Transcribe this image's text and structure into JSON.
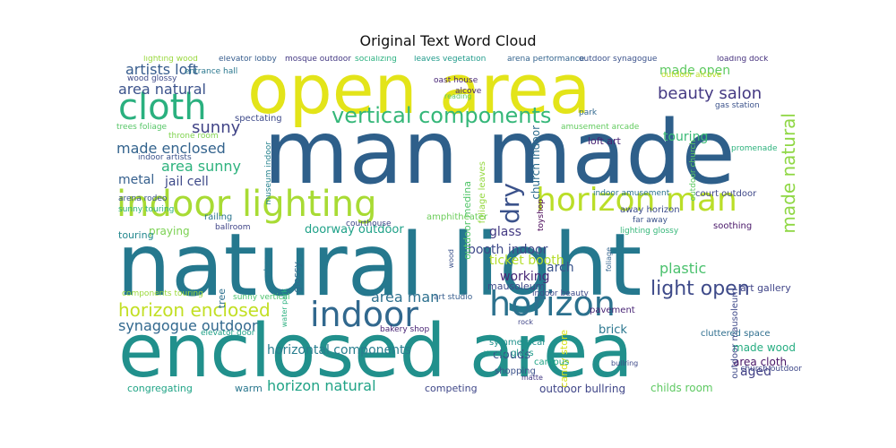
{
  "chart_data": {
    "type": "wordcloud",
    "title": "Original Text Word Cloud",
    "background": "#ffffff",
    "colormap": "viridis",
    "words": [
      {
        "text": "man made",
        "size": 98,
        "color": "#2e5f8a"
      },
      {
        "text": "natural light",
        "size": 96,
        "color": "#25788e"
      },
      {
        "text": "enclosed area",
        "size": 82,
        "color": "#21908c"
      },
      {
        "text": "open area",
        "size": 76,
        "color": "#e3e419"
      },
      {
        "text": "indoor lighting",
        "size": 40,
        "color": "#a8db34"
      },
      {
        "text": "cloth",
        "size": 40,
        "color": "#2ab07f"
      },
      {
        "text": "indoor",
        "size": 38,
        "color": "#31688e"
      },
      {
        "text": "horizon",
        "size": 38,
        "color": "#2c718e"
      },
      {
        "text": "horizon man",
        "size": 36,
        "color": "#bade28"
      },
      {
        "text": "vertical components",
        "size": 24,
        "color": "#35b779"
      },
      {
        "text": "dry",
        "size": 28,
        "color": "#3b528b"
      },
      {
        "text": "made natural",
        "size": 20,
        "color": "#8fd744"
      },
      {
        "text": "light open",
        "size": 22,
        "color": "#3e4a89"
      },
      {
        "text": "beauty salon",
        "size": 18,
        "color": "#443983"
      },
      {
        "text": "horizon enclosed",
        "size": 20,
        "color": "#c2df23"
      },
      {
        "text": "sunny",
        "size": 18,
        "color": "#414487"
      },
      {
        "text": "area natural",
        "size": 16,
        "color": "#3b528b"
      },
      {
        "text": "artists loft",
        "size": 16,
        "color": "#365c8d"
      },
      {
        "text": "made enclosed",
        "size": 16,
        "color": "#33638d"
      },
      {
        "text": "area sunny",
        "size": 16,
        "color": "#2db27d"
      },
      {
        "text": "metal",
        "size": 14,
        "color": "#355f8d"
      },
      {
        "text": "jail cell",
        "size": 14,
        "color": "#3e4a89"
      },
      {
        "text": "area man",
        "size": 16,
        "color": "#2d708e"
      },
      {
        "text": "synagogue outdoor",
        "size": 16,
        "color": "#31688e"
      },
      {
        "text": "horizontal components",
        "size": 14,
        "color": "#287d8e"
      },
      {
        "text": "horizon natural",
        "size": 16,
        "color": "#20a386"
      },
      {
        "text": "plastic",
        "size": 16,
        "color": "#4ac16d"
      },
      {
        "text": "made open",
        "size": 14,
        "color": "#5ec962"
      },
      {
        "text": "touring",
        "size": 14,
        "color": "#3aba76"
      },
      {
        "text": "glass",
        "size": 14,
        "color": "#443a83"
      },
      {
        "text": "booth indoor",
        "size": 14,
        "color": "#3e4989"
      },
      {
        "text": "ticket booth",
        "size": 14,
        "color": "#b5de2b"
      },
      {
        "text": "working",
        "size": 14,
        "color": "#482878"
      },
      {
        "text": "doorway outdoor",
        "size": 13,
        "color": "#1fa188"
      },
      {
        "text": "praying",
        "size": 12,
        "color": "#7ad151"
      },
      {
        "text": "clouds",
        "size": 13,
        "color": "#3c4f8a"
      },
      {
        "text": "brick",
        "size": 13,
        "color": "#2a768e"
      },
      {
        "text": "aged",
        "size": 14,
        "color": "#424086"
      },
      {
        "text": "area cloth",
        "size": 12,
        "color": "#471365"
      },
      {
        "text": "made wood",
        "size": 12,
        "color": "#26ad81"
      },
      {
        "text": "outdoor bullring",
        "size": 12,
        "color": "#404688"
      },
      {
        "text": "childs room",
        "size": 12,
        "color": "#5ec962"
      },
      {
        "text": "congregating",
        "size": 11,
        "color": "#20a486"
      },
      {
        "text": "warm",
        "size": 11,
        "color": "#2a778e"
      },
      {
        "text": "competing",
        "size": 11,
        "color": "#3f4788"
      },
      {
        "text": "candy store",
        "size": 11,
        "color": "#d8e219"
      },
      {
        "text": "touring",
        "size": 11,
        "color": "#23888e"
      },
      {
        "text": "art gallery",
        "size": 11,
        "color": "#404588"
      },
      {
        "text": "arch",
        "size": 14,
        "color": "#3a548c"
      },
      {
        "text": "glossy",
        "size": 11,
        "color": "#2f6b8e"
      },
      {
        "text": "tree",
        "size": 11,
        "color": "#2d708e"
      },
      {
        "text": "mausoleum",
        "size": 11,
        "color": "#3e4a89"
      },
      {
        "text": "church indoor",
        "size": 12,
        "color": "#2e6d8e"
      },
      {
        "text": "outdoor medina",
        "size": 11,
        "color": "#52c569"
      },
      {
        "text": "amphitheater",
        "size": 10,
        "color": "#6ccd5a"
      },
      {
        "text": "foliage leaves",
        "size": 10,
        "color": "#95d840"
      },
      {
        "text": "loft art",
        "size": 11,
        "color": "#482374"
      },
      {
        "text": "court outdoor",
        "size": 10,
        "color": "#3f4889"
      },
      {
        "text": "away horizon",
        "size": 10,
        "color": "#3d4d8a"
      },
      {
        "text": "soothing",
        "size": 10,
        "color": "#481668"
      },
      {
        "text": "pavement",
        "size": 10,
        "color": "#482475"
      },
      {
        "text": "symmetrical",
        "size": 10,
        "color": "#20928c"
      },
      {
        "text": "wood glass",
        "size": 10,
        "color": "#1f998a"
      },
      {
        "text": "shopping",
        "size": 10,
        "color": "#3b528b"
      },
      {
        "text": "campus",
        "size": 10,
        "color": "#21a585"
      },
      {
        "text": "outdoor mausoleum",
        "size": 10,
        "color": "#3e4989"
      },
      {
        "text": "cluttered space",
        "size": 10,
        "color": "#2e6e8e"
      },
      {
        "text": "church outdoor",
        "size": 9,
        "color": "#3f4889"
      },
      {
        "text": "elevator door",
        "size": 9,
        "color": "#1fa187"
      },
      {
        "text": "sunny vertical",
        "size": 9,
        "color": "#4cc26c"
      },
      {
        "text": "components touring",
        "size": 9,
        "color": "#9bd93c"
      },
      {
        "text": "bakery shop",
        "size": 9,
        "color": "#482475"
      },
      {
        "text": "art studio",
        "size": 9,
        "color": "#365d8d"
      },
      {
        "text": "indoor beauty",
        "size": 9,
        "color": "#3e4a89"
      },
      {
        "text": "lighting glossy",
        "size": 9,
        "color": "#35b779"
      },
      {
        "text": "toyshop",
        "size": 9,
        "color": "#440154"
      },
      {
        "text": "far away",
        "size": 9,
        "color": "#3b528b"
      },
      {
        "text": "railing",
        "size": 10,
        "color": "#2b748e"
      },
      {
        "text": "ballroom",
        "size": 9,
        "color": "#404588"
      },
      {
        "text": "courthouse",
        "size": 9,
        "color": "#3f4788"
      },
      {
        "text": "sunny touring",
        "size": 9,
        "color": "#2ab07f"
      },
      {
        "text": "arena rodeo",
        "size": 9,
        "color": "#3a548c"
      },
      {
        "text": "indoor artists",
        "size": 9,
        "color": "#3b528b"
      },
      {
        "text": "throne room",
        "size": 9,
        "color": "#7fd34e"
      },
      {
        "text": "trees foliage",
        "size": 9,
        "color": "#56c667"
      },
      {
        "text": "spectating",
        "size": 10,
        "color": "#3e4a89"
      },
      {
        "text": "lighting wood",
        "size": 9,
        "color": "#99d83d"
      },
      {
        "text": "wood glossy",
        "size": 9,
        "color": "#3e4a89"
      },
      {
        "text": "entrance hall",
        "size": 9,
        "color": "#2a778e"
      },
      {
        "text": "elevator lobby",
        "size": 9,
        "color": "#365c8d"
      },
      {
        "text": "mosque outdoor",
        "size": 9,
        "color": "#443983"
      },
      {
        "text": "socializing",
        "size": 9,
        "color": "#2ab07f"
      },
      {
        "text": "leaves vegetation",
        "size": 9,
        "color": "#1f9a8a"
      },
      {
        "text": "arena performance",
        "size": 9,
        "color": "#33638d"
      },
      {
        "text": "outdoor synagogue",
        "size": 9,
        "color": "#3b528b"
      },
      {
        "text": "loading dock",
        "size": 9,
        "color": "#46327e"
      },
      {
        "text": "outdoor alcove",
        "size": 9,
        "color": "#bddf26"
      },
      {
        "text": "oast house",
        "size": 9,
        "color": "#482677"
      },
      {
        "text": "alcove",
        "size": 9,
        "color": "#482878"
      },
      {
        "text": "reading",
        "size": 8,
        "color": "#5ec962"
      },
      {
        "text": "amusement arcade",
        "size": 9,
        "color": "#63cb5f"
      },
      {
        "text": "park",
        "size": 9,
        "color": "#31688e"
      },
      {
        "text": "gas station",
        "size": 9,
        "color": "#3b528b"
      },
      {
        "text": "promenade",
        "size": 9,
        "color": "#2db27d"
      },
      {
        "text": "outdoor church",
        "size": 9,
        "color": "#5ec962"
      },
      {
        "text": "indoor amusement",
        "size": 9,
        "color": "#2b748e"
      },
      {
        "text": "museum indoor",
        "size": 9,
        "color": "#26828e"
      },
      {
        "text": "water park",
        "size": 8,
        "color": "#2ab07f"
      },
      {
        "text": "plaza",
        "size": 8,
        "color": "#2a778e"
      },
      {
        "text": "wood",
        "size": 8,
        "color": "#3b528b"
      },
      {
        "text": "foliage",
        "size": 8,
        "color": "#33638d"
      },
      {
        "text": "rock",
        "size": 8,
        "color": "#404688"
      },
      {
        "text": "matte",
        "size": 8,
        "color": "#443983"
      },
      {
        "text": "bullring",
        "size": 8,
        "color": "#3e4a89"
      }
    ]
  }
}
